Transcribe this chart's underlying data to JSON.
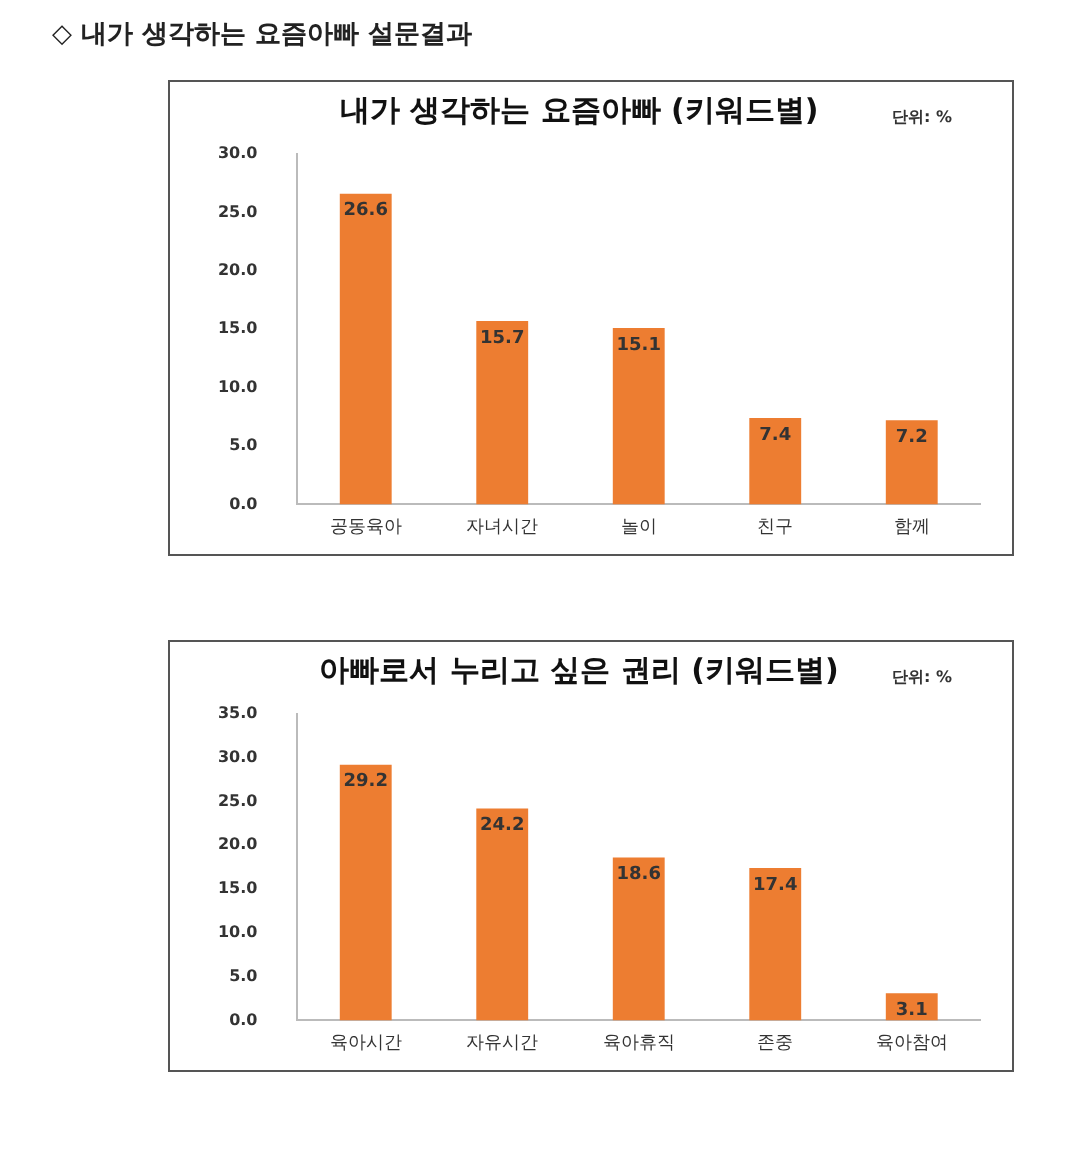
{
  "chart_data": [
    {
      "type": "bar",
      "title": "내가 생각하는 요즘아빠 (키워드별)",
      "annotations": [
        "◇ 내가 생각하는 요즘아빠 설문결과",
        "단위: %"
      ],
      "categories": [
        "공동육아",
        "자녀시간",
        "놀이",
        "친구",
        "함께"
      ],
      "values": [
        26.6,
        15.7,
        15.1,
        7.4,
        7.2
      ],
      "color": "#ed7d31",
      "ylim": [
        0,
        30
      ],
      "yticks": [
        {
          "value": 0,
          "label": "0.0"
        },
        {
          "value": 5,
          "label": "5.0"
        },
        {
          "value": 10,
          "label": "10.0"
        },
        {
          "value": 15,
          "label": "15.0"
        },
        {
          "value": 20,
          "label": "20.0"
        },
        {
          "value": 25,
          "label": "25.0"
        },
        {
          "value": 30,
          "label": "30.0"
        }
      ],
      "data_labels": true,
      "grid": false,
      "legend": false
    },
    {
      "type": "bar",
      "title": "아빠로서 누리고 싶은 권리 (키워드별)",
      "annotations": [
        "단위: %"
      ],
      "categories": [
        "육아시간",
        "자유시간",
        "육아휴직",
        "존중",
        "육아참여"
      ],
      "values": [
        29.2,
        24.2,
        18.6,
        17.4,
        3.1
      ],
      "color": "#ed7d31",
      "ylim": [
        0,
        35
      ],
      "yticks": [
        {
          "value": 0,
          "label": "0.0"
        },
        {
          "value": 5,
          "label": "5.0"
        },
        {
          "value": 10,
          "label": "10.0"
        },
        {
          "value": 15,
          "label": "15.0"
        },
        {
          "value": 20,
          "label": "20.0"
        },
        {
          "value": 25,
          "label": "25.0"
        },
        {
          "value": 30,
          "label": "30.0"
        },
        {
          "value": 35,
          "label": "35.0"
        }
      ],
      "data_labels": true,
      "grid": false,
      "legend": false
    }
  ]
}
